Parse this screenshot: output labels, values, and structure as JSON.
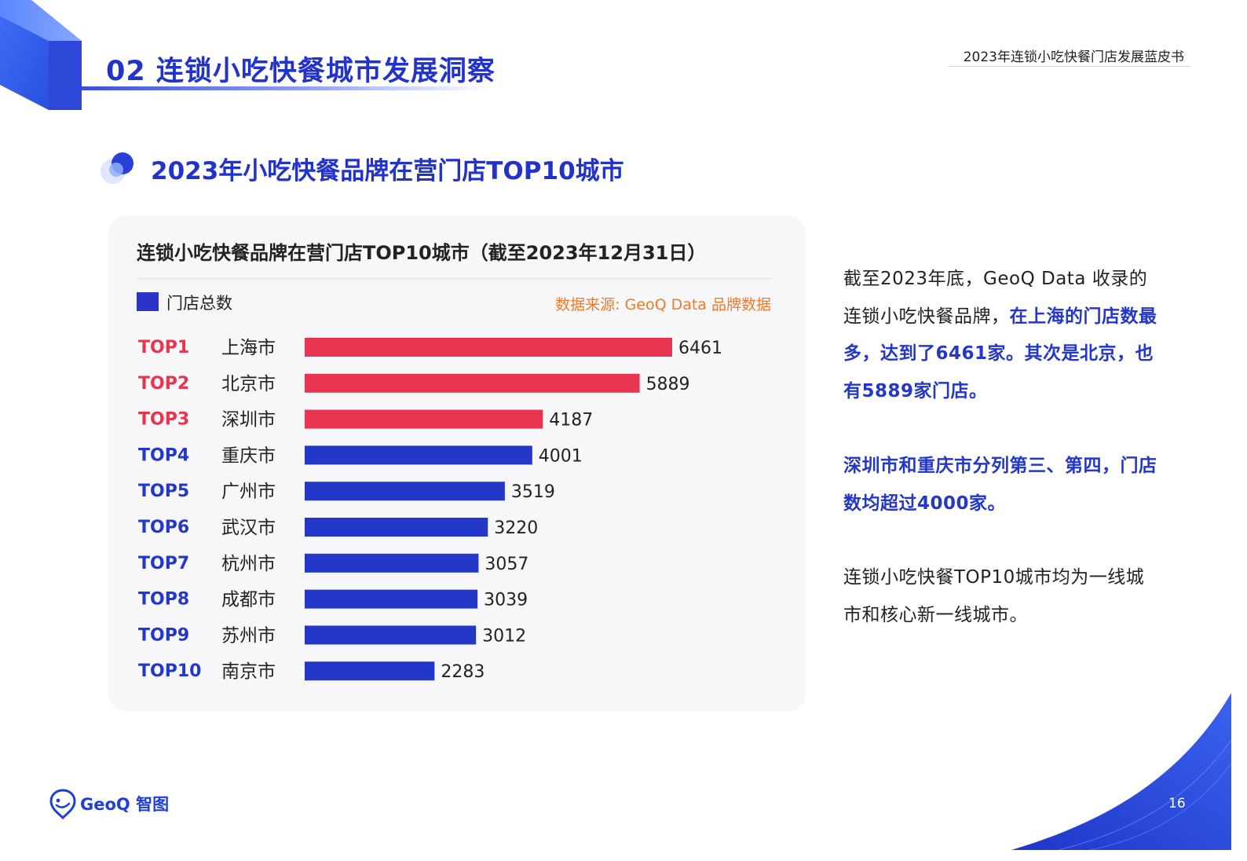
{
  "header": {
    "section_title": "02 连锁小吃快餐城市发展洞察",
    "report_title": "2023年连锁小吃快餐门店发展蓝皮书"
  },
  "subheader": {
    "title": "2023年小吃快餐品牌在营门店TOP10城市"
  },
  "chart_data": {
    "type": "bar",
    "orientation": "horizontal",
    "title": "连锁小吃快餐品牌在营门店TOP10城市（截至2023年12月31日）",
    "source": "数据来源: GeoQ Data 品牌数据",
    "legend": [
      "门店总数"
    ],
    "legend_position": "top-left",
    "ranks": [
      "TOP1",
      "TOP2",
      "TOP3",
      "TOP4",
      "TOP5",
      "TOP6",
      "TOP7",
      "TOP8",
      "TOP9",
      "TOP10"
    ],
    "categories": [
      "上海市",
      "北京市",
      "深圳市",
      "重庆市",
      "广州市",
      "武汉市",
      "杭州市",
      "成都市",
      "苏州市",
      "南京市"
    ],
    "series": [
      {
        "name": "门店总数",
        "values": [
          6461,
          5889,
          4187,
          4001,
          3519,
          3220,
          3057,
          3039,
          3012,
          2283
        ]
      }
    ],
    "highlight_top_n": 3,
    "colors": {
      "highlight": "#e8354f",
      "default": "#2338c8"
    },
    "grid": false
  },
  "description": {
    "p1_plain": "截至2023年底，GeoQ Data 收录的连锁小吃快餐品牌，",
    "p1_highlight": "在上海的门店数最多，达到了6461家。其次是北京，也有5889家门店。",
    "p2_highlight": "深圳市和重庆市分列第三、第四，门店数均超过4000家。",
    "p3_plain": "连锁小吃快餐TOP10城市均为一线城市和核心新一线城市。"
  },
  "footer": {
    "brand": "GeoQ 智图",
    "page_number": "16"
  },
  "icons": {
    "logo": "geoq-logo-icon",
    "section_bullet": "bubble-icon",
    "cube": "cube-decoration-icon"
  }
}
